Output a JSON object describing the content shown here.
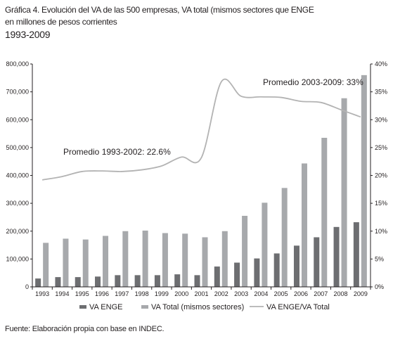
{
  "title": {
    "line1": "Gráfica 4. Evolución del VA de las 500 empresas, VA total (mismos sectores que ENGE",
    "line2": "en millones de pesos corrientes",
    "line3": "1993-2009"
  },
  "source": "Fuente: Elaboración propia con base en INDEC.",
  "colors": {
    "va_enge": "#6d6e71",
    "va_total": "#a7a9ac",
    "ratio": "#b3b3b3",
    "axis": "#231f20"
  },
  "chart_data": {
    "type": "bar",
    "categories": [
      "1993",
      "1994",
      "1995",
      "1996",
      "1997",
      "1998",
      "1999",
      "2000",
      "2001",
      "2002",
      "2003",
      "2004",
      "2005",
      "2006",
      "2007",
      "2008",
      "2009"
    ],
    "series": [
      {
        "name": "VA ENGE",
        "type": "bar",
        "axis": "left",
        "values": [
          30000,
          35000,
          35000,
          37000,
          42000,
          42000,
          42000,
          45000,
          42000,
          73000,
          87000,
          102000,
          120000,
          148000,
          178000,
          215000,
          232000
        ]
      },
      {
        "name": "VA Total (mismos sectores)",
        "type": "bar",
        "axis": "left",
        "values": [
          158000,
          173000,
          170000,
          183000,
          200000,
          202000,
          193000,
          191000,
          178000,
          200000,
          255000,
          302000,
          355000,
          443000,
          535000,
          677000,
          760000
        ]
      },
      {
        "name": "VA ENGE/VA Total",
        "type": "line",
        "axis": "right",
        "unit": "%",
        "values": [
          19.2,
          19.8,
          20.7,
          20.8,
          20.7,
          21.0,
          21.7,
          23.3,
          23.2,
          36.8,
          34.2,
          34.1,
          34.0,
          33.3,
          33.1,
          31.8,
          30.5
        ]
      }
    ],
    "ylim": [
      0,
      800000
    ],
    "y_ticks": [
      "0",
      "100,000",
      "200,000",
      "300,000",
      "400,000",
      "500,000",
      "600,000",
      "700,000",
      "800,000"
    ],
    "y2lim": [
      0,
      40
    ],
    "y2_ticks": [
      "0%",
      "5%",
      "10%",
      "15%",
      "20%",
      "25%",
      "30%",
      "35%",
      "40%"
    ],
    "annotations": [
      {
        "text": "Promedio 1993-2002: 22.6%",
        "near_category": "1994"
      },
      {
        "text": "Promedio 2003-2009: 33%",
        "near_category": "2005"
      }
    ],
    "legend_position": "bottom",
    "grid": false
  }
}
